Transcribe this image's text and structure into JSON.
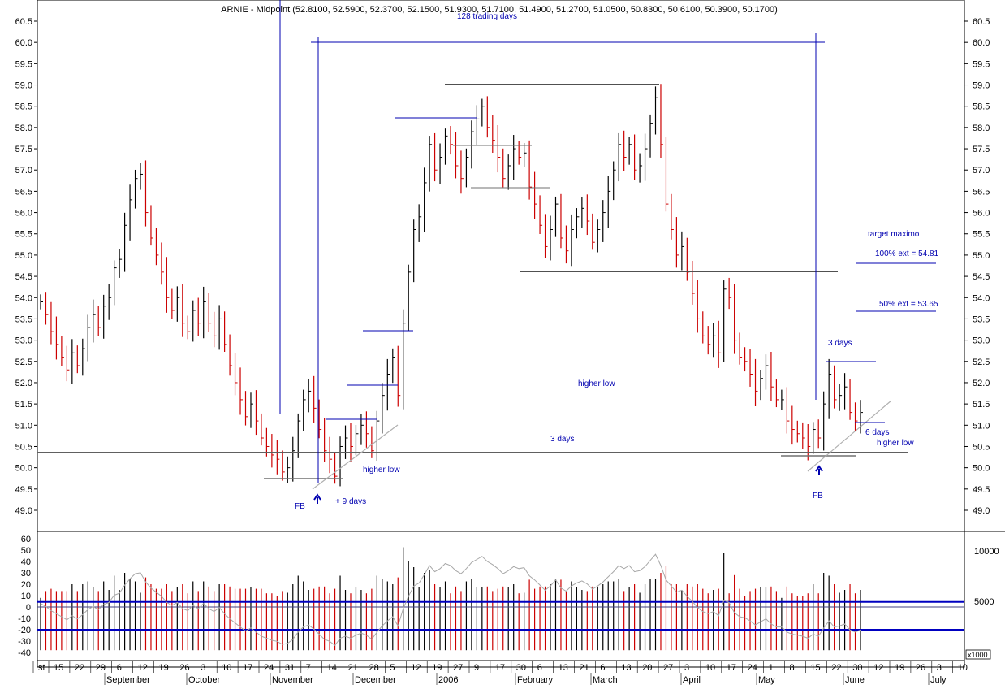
{
  "title": "ARNIE - Midpoint (52.8100, 52.5900, 52.3700, 52.1500, 51.9300, 51.7100, 51.4900, 51.2700, 51.0500, 50.8300, 50.6100, 50.3900, 50.1700)",
  "scale_label": "x1000",
  "colors": {
    "up": "#000000",
    "down": "#cc0000",
    "annotation": "#0000b0",
    "grey_line": "#707070",
    "indicator_line": "#a0a0a0",
    "band": "#0000c0"
  },
  "chart_data": [
    {
      "type": "bar",
      "name": "price",
      "ylim": [
        48.5,
        60.8
      ],
      "yticks": [
        "60.5",
        "60.0",
        "59.5",
        "59.0",
        "58.5",
        "58.0",
        "57.5",
        "57.0",
        "56.5",
        "56.0",
        "55.5",
        "55.0",
        "54.5",
        "54.0",
        "53.5",
        "53.0",
        "52.5",
        "52.0",
        "51.5",
        "51.0",
        "50.5",
        "50.0",
        "49.5",
        "49.0"
      ],
      "x_labels": [
        "st",
        "15",
        "22",
        "29",
        "6",
        "12",
        "19",
        "26",
        "3",
        "10",
        "17",
        "24",
        "31",
        "7",
        "14",
        "21",
        "28",
        "5",
        "12",
        "19",
        "27",
        "9",
        "17",
        "30",
        "6",
        "13",
        "21",
        "6",
        "13",
        "20",
        "27",
        "3",
        "10",
        "17",
        "24",
        "1",
        "8",
        "15",
        "22",
        "30",
        "12",
        "19",
        "26",
        "3",
        "10"
      ],
      "month_labels": [
        "September",
        "October",
        "November",
        "December",
        "2006",
        "February",
        "March",
        "April",
        "May",
        "June",
        "July"
      ],
      "closes": [
        53.9,
        53.6,
        53.2,
        52.9,
        52.6,
        52.3,
        52.7,
        52.4,
        52.8,
        53.3,
        53.6,
        53.3,
        53.8,
        54.0,
        54.7,
        54.9,
        55.7,
        56.3,
        56.8,
        56.9,
        56.0,
        55.4,
        55.0,
        54.6,
        54.0,
        53.7,
        54.0,
        53.4,
        53.2,
        53.7,
        53.4,
        53.9,
        53.4,
        53.1,
        53.5,
        52.9,
        52.4,
        52.0,
        51.6,
        51.2,
        51.5,
        51.1,
        50.7,
        50.5,
        50.3,
        50.2,
        49.9,
        50.0,
        50.4,
        51.1,
        51.6,
        51.8,
        51.4,
        50.9,
        50.4,
        50.2,
        49.8,
        50.5,
        50.7,
        50.5,
        50.8,
        51.0,
        50.8,
        50.4,
        51.1,
        51.7,
        52.2,
        52.6,
        51.7,
        53.4,
        54.6,
        55.6,
        55.9,
        56.7,
        57.6,
        57.0,
        57.3,
        57.8,
        57.6,
        57.1,
        56.8,
        57.3,
        57.9,
        58.2,
        58.5,
        58.0,
        57.7,
        57.3,
        56.8,
        57.1,
        57.5,
        57.3,
        57.4,
        56.6,
        56.2,
        55.7,
        55.2,
        55.6,
        56.2,
        55.4,
        55.1,
        55.6,
        55.9,
        56.1,
        55.8,
        55.3,
        55.6,
        56.0,
        56.5,
        57.0,
        57.6,
        57.3,
        57.6,
        57.0,
        57.1,
        57.5,
        58.1,
        58.7,
        57.6,
        56.2,
        55.6,
        55.0,
        55.2,
        54.6,
        54.1,
        53.5,
        53.1,
        52.9,
        53.1,
        52.7,
        54.2,
        54.0,
        53.0,
        52.6,
        52.5,
        52.2,
        51.8,
        52.1,
        52.4,
        51.9,
        51.6,
        51.6,
        51.1,
        50.9,
        50.8,
        50.7,
        50.5,
        50.9,
        50.7,
        51.5,
        52.2,
        51.6,
        51.7,
        51.9,
        51.3,
        51.1,
        51.3
      ]
    },
    {
      "type": "bar",
      "name": "indicator",
      "ylim": [
        -45,
        68
      ],
      "yticks": [
        "60",
        "50",
        "40",
        "30",
        "20",
        "10",
        "0",
        "-10",
        "-20",
        "-30",
        "-40"
      ],
      "right_ticks": [
        "10000",
        "5000"
      ],
      "bands": [
        4.5,
        0,
        -20
      ]
    }
  ],
  "annotations": {
    "trading_days": "128 trading days",
    "higher_low_1": "higher low",
    "higher_low_2": "higher low",
    "higher_low_3": "higher low",
    "fb_1": "FB",
    "fb_2": "FB",
    "plus_9_days": "+ 9 days",
    "three_days_1": "3 days",
    "three_days_2": "3 days",
    "six_days": "6 days",
    "target": "target maximo",
    "ext_100": "100% ext = 54.81",
    "ext_50": "50% ext = 53.65"
  }
}
